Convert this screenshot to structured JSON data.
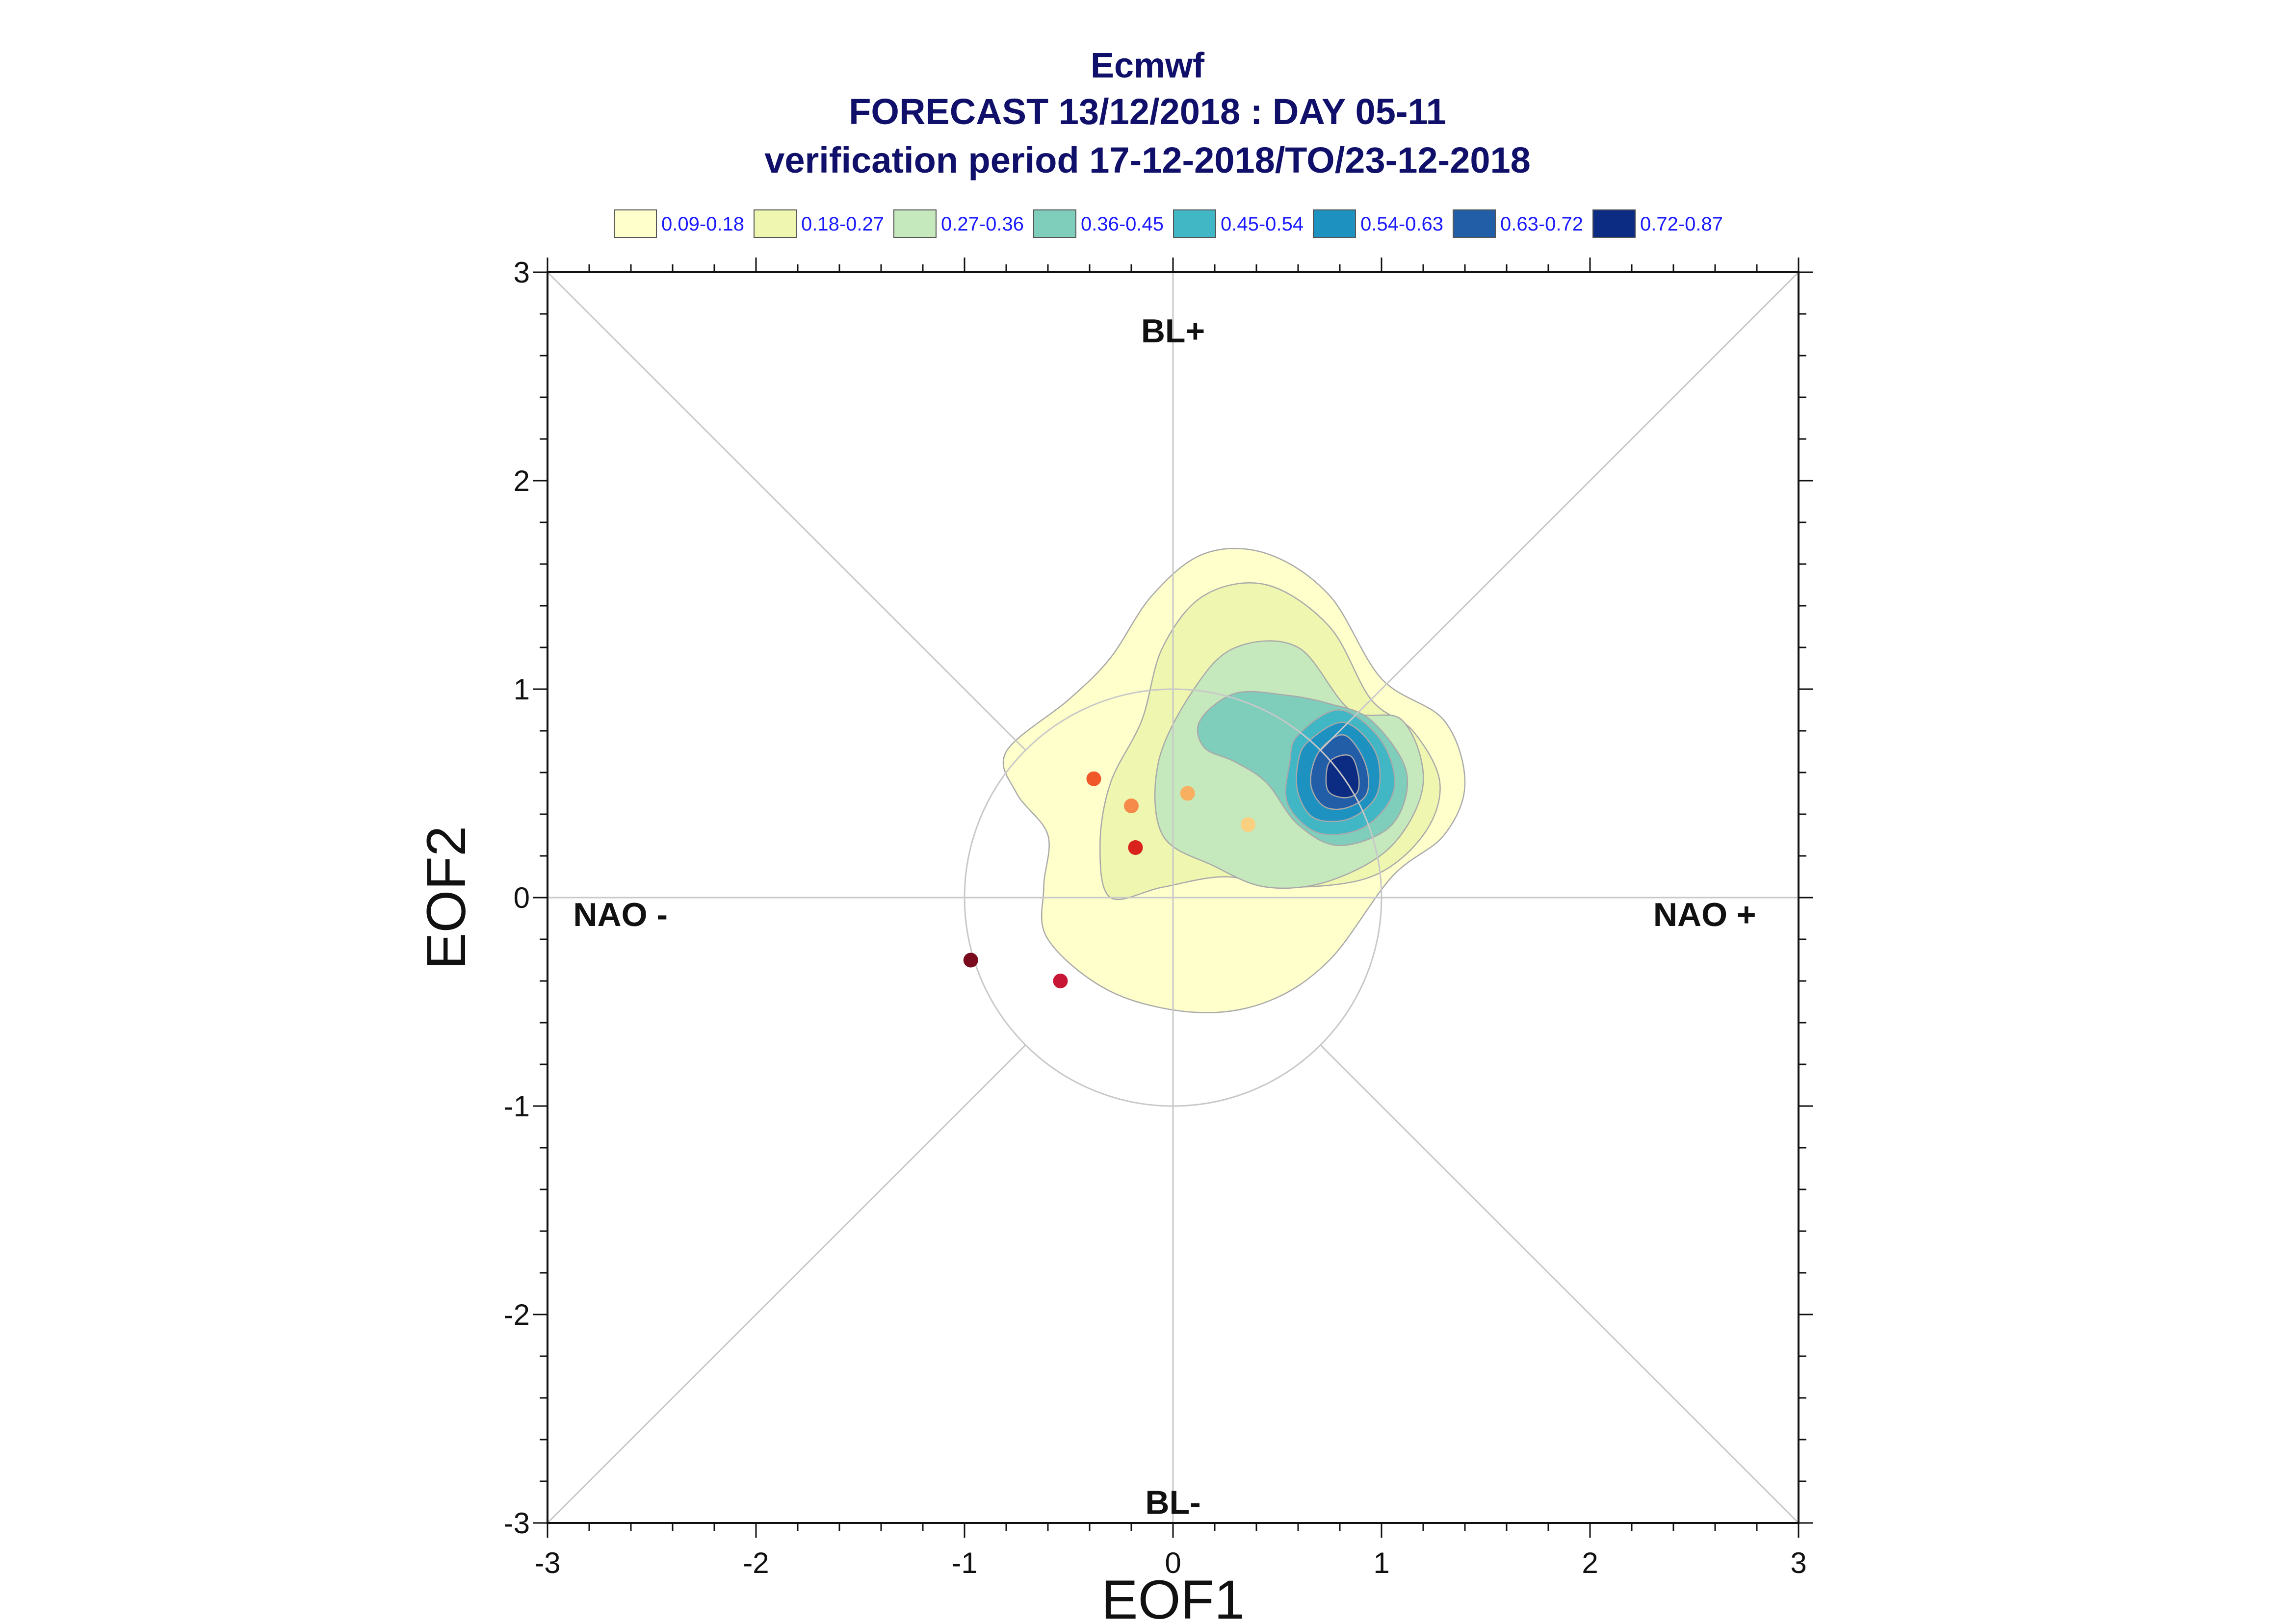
{
  "chart_data": {
    "type": "contour",
    "title": [
      "Ecmwf",
      "FORECAST 13/12/2018 : DAY 05-11",
      "verification period 17-12-2018/TO/23-12-2018"
    ],
    "xlabel": "EOF1",
    "ylabel": "EOF2",
    "xlim": [
      -3,
      3
    ],
    "ylim": [
      -3,
      3
    ],
    "xticks": [
      -3,
      -2,
      -1,
      0,
      1,
      2,
      3
    ],
    "yticks": [
      -3,
      -2,
      -1,
      0,
      1,
      2,
      3
    ],
    "regime_labels": [
      {
        "text": "BL+",
        "x": 0,
        "y": 2.72
      },
      {
        "text": "BL-",
        "x": 0,
        "y": -2.9
      },
      {
        "text": "NAO -",
        "x": -2.65,
        "y": -0.08
      },
      {
        "text": "NAO +",
        "x": 2.55,
        "y": -0.08
      }
    ],
    "legend": [
      {
        "label": "0.09-0.18",
        "color": "#ffffcc"
      },
      {
        "label": "0.18-0.27",
        "color": "#eef6b0"
      },
      {
        "label": "0.27-0.36",
        "color": "#c5e8bd"
      },
      {
        "label": "0.36-0.45",
        "color": "#7fcdbb"
      },
      {
        "label": "0.45-0.54",
        "color": "#41b6c4"
      },
      {
        "label": "0.54-0.63",
        "color": "#1d91c0"
      },
      {
        "label": "0.63-0.72",
        "color": "#225ea8"
      },
      {
        "label": "0.72-0.87",
        "color": "#0c2c84"
      }
    ],
    "contours": [
      {
        "level": "0.09-0.18",
        "points": [
          [
            -0.8,
            0.7
          ],
          [
            -0.5,
            0.95
          ],
          [
            -0.3,
            1.15
          ],
          [
            -0.1,
            1.45
          ],
          [
            0.15,
            1.65
          ],
          [
            0.45,
            1.65
          ],
          [
            0.75,
            1.45
          ],
          [
            1.0,
            1.05
          ],
          [
            1.3,
            0.85
          ],
          [
            1.4,
            0.55
          ],
          [
            1.3,
            0.3
          ],
          [
            1.05,
            0.1
          ],
          [
            0.75,
            -0.3
          ],
          [
            0.45,
            -0.5
          ],
          [
            0.1,
            -0.55
          ],
          [
            -0.3,
            -0.45
          ],
          [
            -0.6,
            -0.2
          ],
          [
            -0.62,
            0.05
          ],
          [
            -0.6,
            0.3
          ],
          [
            -0.75,
            0.5
          ]
        ]
      },
      {
        "level": "0.18-0.27",
        "points": [
          [
            -0.3,
            0.55
          ],
          [
            -0.15,
            0.85
          ],
          [
            -0.05,
            1.2
          ],
          [
            0.15,
            1.45
          ],
          [
            0.45,
            1.5
          ],
          [
            0.75,
            1.3
          ],
          [
            0.95,
            0.95
          ],
          [
            1.15,
            0.8
          ],
          [
            1.28,
            0.55
          ],
          [
            1.2,
            0.3
          ],
          [
            0.95,
            0.1
          ],
          [
            0.55,
            0.05
          ],
          [
            0.25,
            0.1
          ],
          [
            -0.05,
            0.05
          ],
          [
            -0.3,
            0.0
          ],
          [
            -0.35,
            0.25
          ]
        ]
      },
      {
        "level": "0.27-0.36",
        "points": [
          [
            -0.07,
            0.65
          ],
          [
            0.1,
            1.0
          ],
          [
            0.3,
            1.2
          ],
          [
            0.6,
            1.2
          ],
          [
            0.85,
            0.9
          ],
          [
            1.1,
            0.85
          ],
          [
            1.2,
            0.55
          ],
          [
            1.05,
            0.25
          ],
          [
            0.75,
            0.08
          ],
          [
            0.45,
            0.05
          ],
          [
            0.2,
            0.15
          ],
          [
            -0.05,
            0.3
          ]
        ]
      },
      {
        "level": "0.36-0.45",
        "points": [
          [
            0.13,
            0.85
          ],
          [
            0.3,
            0.98
          ],
          [
            0.55,
            0.97
          ],
          [
            0.75,
            0.93
          ],
          [
            0.95,
            0.85
          ],
          [
            1.12,
            0.6
          ],
          [
            1.05,
            0.35
          ],
          [
            0.8,
            0.25
          ],
          [
            0.6,
            0.35
          ],
          [
            0.45,
            0.55
          ],
          [
            0.3,
            0.65
          ],
          [
            0.15,
            0.72
          ]
        ]
      },
      {
        "level": "0.45-0.54",
        "points": [
          [
            0.6,
            0.78
          ],
          [
            0.8,
            0.9
          ],
          [
            1.0,
            0.75
          ],
          [
            1.06,
            0.52
          ],
          [
            0.92,
            0.34
          ],
          [
            0.7,
            0.31
          ],
          [
            0.55,
            0.45
          ],
          [
            0.56,
            0.65
          ]
        ]
      },
      {
        "level": "0.54-0.63",
        "points": [
          [
            0.65,
            0.75
          ],
          [
            0.82,
            0.84
          ],
          [
            0.97,
            0.7
          ],
          [
            0.98,
            0.5
          ],
          [
            0.85,
            0.38
          ],
          [
            0.68,
            0.38
          ],
          [
            0.6,
            0.5
          ],
          [
            0.6,
            0.65
          ]
        ]
      },
      {
        "level": "0.63-0.72",
        "points": [
          [
            0.7,
            0.7
          ],
          [
            0.82,
            0.78
          ],
          [
            0.92,
            0.65
          ],
          [
            0.93,
            0.5
          ],
          [
            0.83,
            0.43
          ],
          [
            0.72,
            0.44
          ],
          [
            0.66,
            0.55
          ]
        ]
      },
      {
        "level": "0.72-0.87",
        "points": [
          [
            0.75,
            0.65
          ],
          [
            0.85,
            0.68
          ],
          [
            0.89,
            0.58
          ],
          [
            0.88,
            0.5
          ],
          [
            0.81,
            0.48
          ],
          [
            0.74,
            0.52
          ]
        ]
      }
    ],
    "circle": {
      "cx": 0,
      "cy": 0,
      "r": 1
    },
    "points": [
      {
        "x": -0.38,
        "y": 0.57,
        "color": "#f0582a"
      },
      {
        "x": -0.2,
        "y": 0.44,
        "color": "#f58a4a"
      },
      {
        "x": -0.18,
        "y": 0.24,
        "color": "#d9221c"
      },
      {
        "x": 0.07,
        "y": 0.5,
        "color": "#f8b060"
      },
      {
        "x": 0.36,
        "y": 0.35,
        "color": "#fbcf80"
      },
      {
        "x": -0.97,
        "y": -0.3,
        "color": "#7a0a1e"
      },
      {
        "x": -0.54,
        "y": -0.4,
        "color": "#c81636"
      }
    ]
  }
}
